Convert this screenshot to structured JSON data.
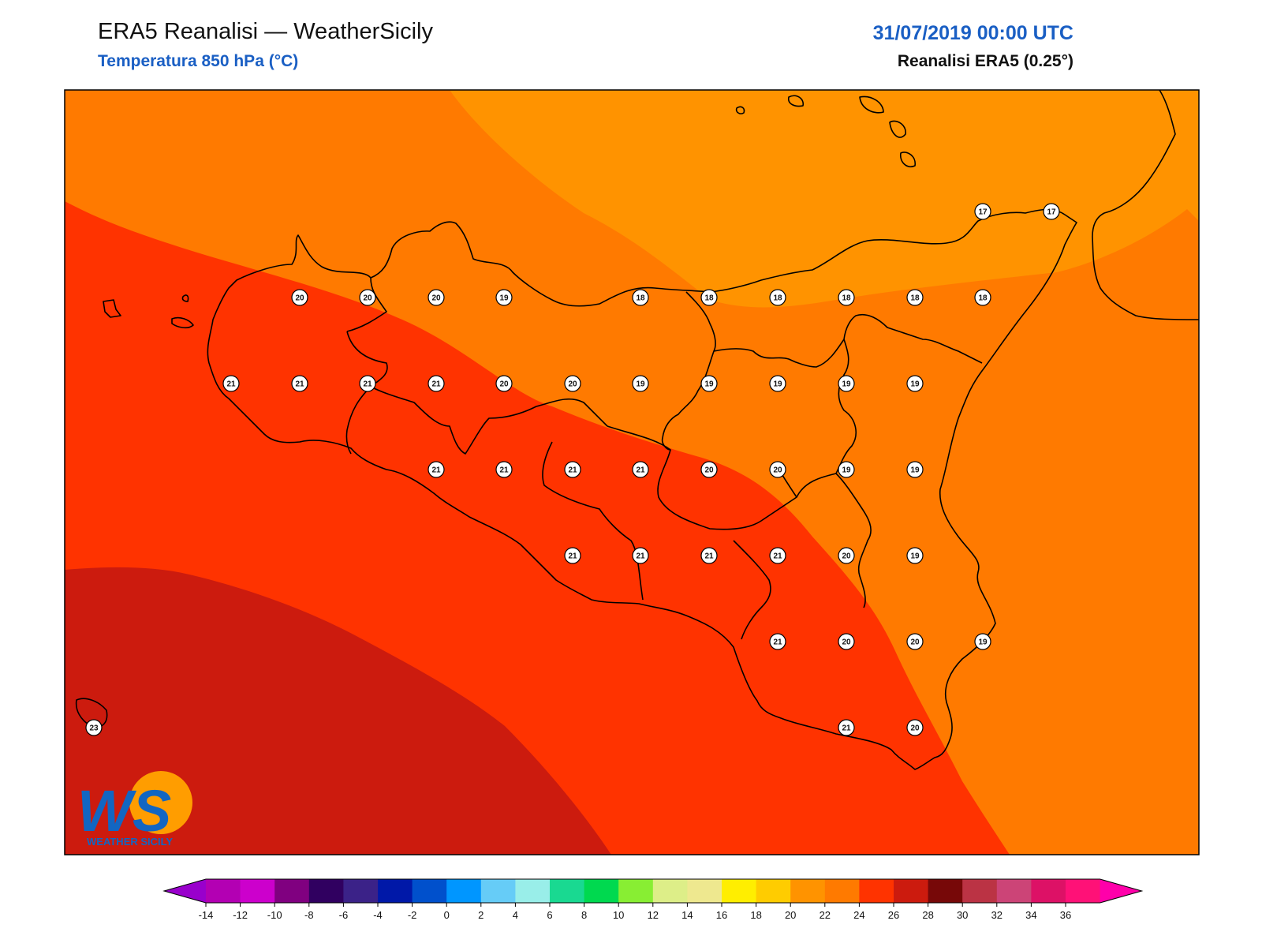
{
  "header": {
    "title": "ERA5 Reanalisi — WeatherSicily",
    "subtitle": "Temperatura 850 hPa (°C)",
    "datetime": "31/07/2019 00:00 UTC",
    "model": "Reanalisi ERA5 (0.25°)"
  },
  "logo": {
    "letters": "WS",
    "name": "WEATHER SICILY"
  },
  "map": {
    "field_colors": {
      "16-18": "#ff9300",
      "18-20": "#ff7a00",
      "20-22": "#ff3300",
      "22-24": "#cc1b0e"
    },
    "station_values": [
      [
        {
          "v": 17
        },
        {
          "v": 17
        }
      ],
      [
        {
          "v": 20
        },
        {
          "v": 20
        },
        {
          "v": 20
        },
        {
          "v": 19
        },
        {
          "v": 18
        },
        {
          "v": 18
        },
        {
          "v": 18
        },
        {
          "v": 18
        },
        {
          "v": 18
        },
        {
          "v": 18
        }
      ],
      [
        {
          "v": 21
        },
        {
          "v": 21
        },
        {
          "v": 21
        },
        {
          "v": 21
        },
        {
          "v": 20
        },
        {
          "v": 20
        },
        {
          "v": 19
        },
        {
          "v": 19
        },
        {
          "v": 19
        },
        {
          "v": 19
        },
        {
          "v": 19
        }
      ],
      [
        {
          "v": 21
        },
        {
          "v": 21
        },
        {
          "v": 21
        },
        {
          "v": 21
        },
        {
          "v": 20
        },
        {
          "v": 20
        },
        {
          "v": 19
        },
        {
          "v": 19
        }
      ],
      [
        {
          "v": 21
        },
        {
          "v": 21
        },
        {
          "v": 21
        },
        {
          "v": 21
        },
        {
          "v": 20
        },
        {
          "v": 19
        }
      ],
      [
        {
          "v": 21
        },
        {
          "v": 20
        },
        {
          "v": 20
        },
        {
          "v": 19
        }
      ],
      [
        {
          "v": 23
        },
        {
          "v": 21
        },
        {
          "v": 20
        }
      ]
    ]
  },
  "colorbar": {
    "ticks": [
      "-14",
      "-12",
      "-10",
      "-8",
      "-6",
      "-4",
      "-2",
      "0",
      "2",
      "4",
      "6",
      "8",
      "10",
      "12",
      "14",
      "16",
      "18",
      "20",
      "22",
      "24",
      "26",
      "28",
      "30",
      "32",
      "34",
      "36"
    ],
    "low_color": "#9900cc",
    "high_color": "#ff00aa",
    "colors": [
      "#b300b3",
      "#cc00cc",
      "#800080",
      "#300060",
      "#3b2288",
      "#0018a8",
      "#0050cc",
      "#0096ff",
      "#66ccf7",
      "#99eee9",
      "#19d991",
      "#00d94f",
      "#88ee33",
      "#ddee88",
      "#eee88f",
      "#ffee00",
      "#ffcc00",
      "#ff9300",
      "#ff7a00",
      "#ff3300",
      "#cc1b0e",
      "#770808",
      "#bb3344",
      "#cc4477",
      "#dd1166",
      "#ff1177"
    ]
  }
}
